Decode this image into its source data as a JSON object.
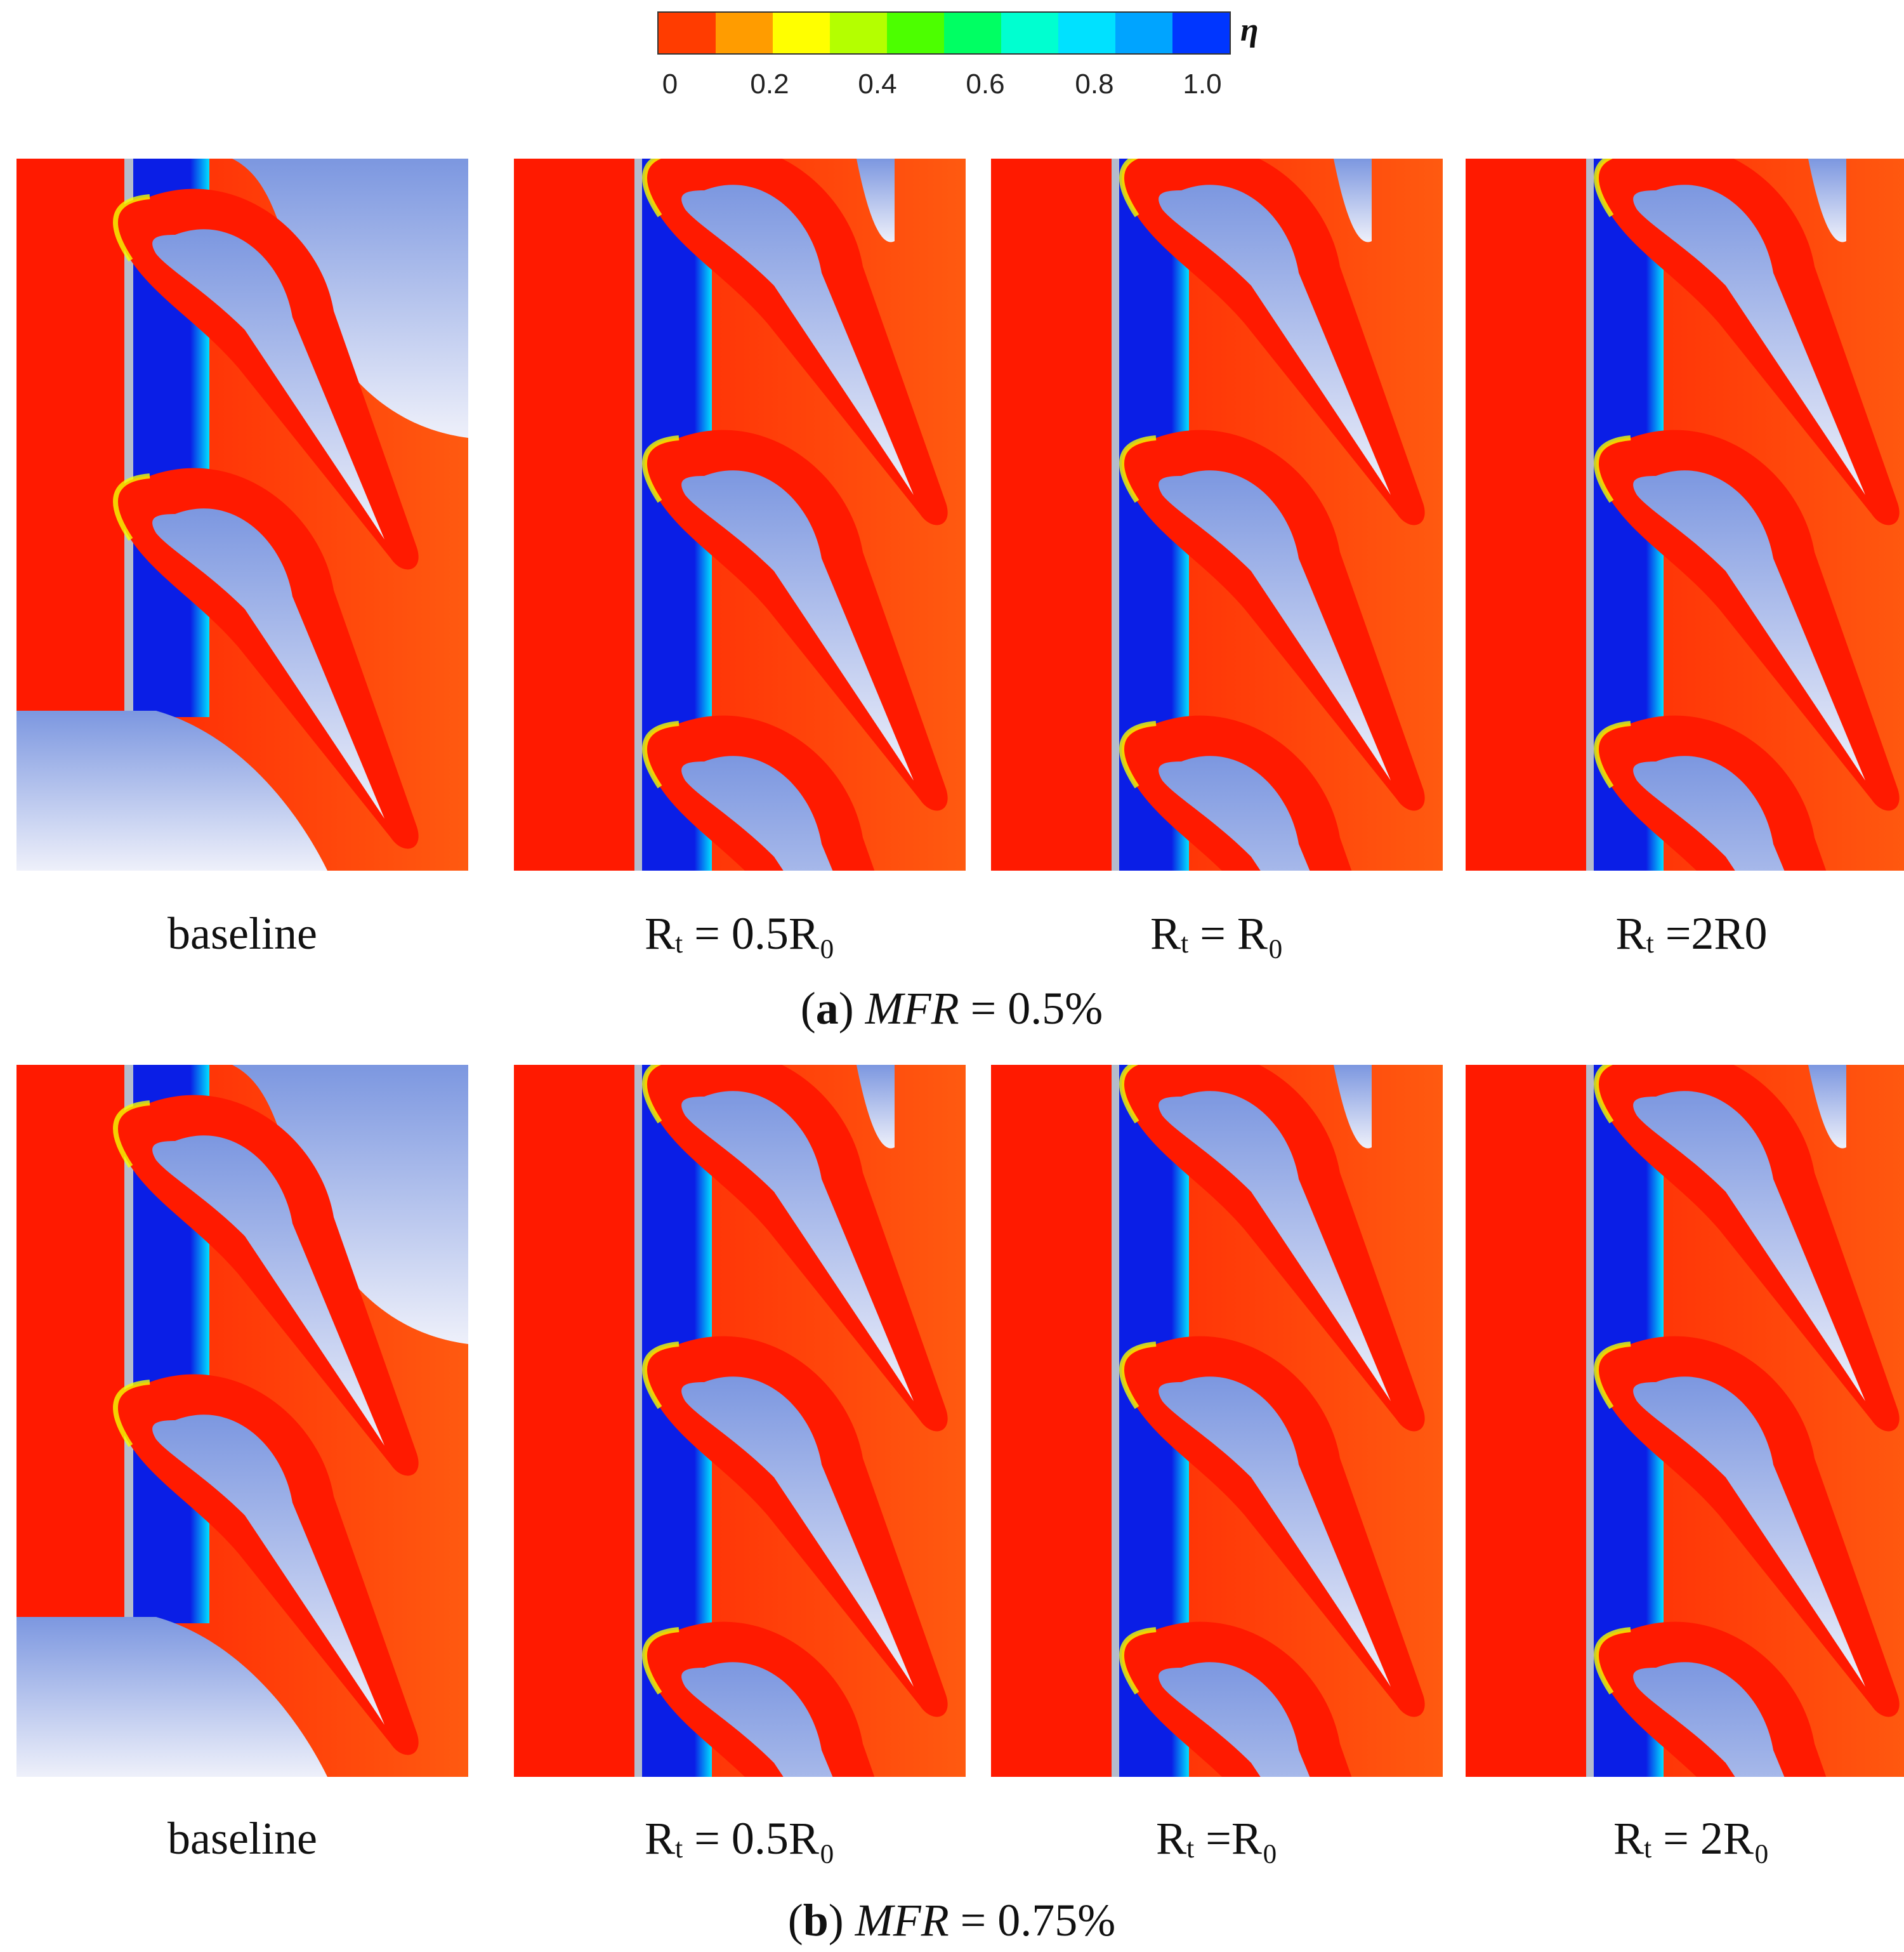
{
  "colorbar": {
    "symbol": "η",
    "ticks": [
      "0",
      "0.2",
      "0.4",
      "0.6",
      "0.8",
      "1.0"
    ],
    "colors": [
      "#ff3c00",
      "#ff9c00",
      "#ffff00",
      "#b4ff00",
      "#4cff00",
      "#00ff63",
      "#00ffd0",
      "#00e1ff",
      "#00a4ff",
      "#0036ff"
    ]
  },
  "rows": [
    {
      "caption": {
        "letter": "a",
        "var": "MFR",
        "rest": " = 0.5%"
      },
      "panels": [
        {
          "label_main": "baseline",
          "label_sub": "",
          "label_tail": "",
          "kind": "baseline"
        },
        {
          "label_main": "R",
          "label_sub": "t",
          "label_tail": " = 0.5R₀",
          "kind": "tapered"
        },
        {
          "label_main": "R",
          "label_sub": "t",
          "label_tail": " = R₀",
          "kind": "tapered"
        },
        {
          "label_main": "R",
          "label_sub": "t",
          "label_tail": " =2R0",
          "kind": "tapered"
        }
      ]
    },
    {
      "caption": {
        "letter": "b",
        "var": "MFR",
        "rest": " = 0.75%"
      },
      "panels": [
        {
          "label_main": "baseline",
          "label_sub": "",
          "label_tail": "",
          "kind": "baseline"
        },
        {
          "label_main": "R",
          "label_sub": "t",
          "label_tail": " = 0.5R₀",
          "kind": "tapered"
        },
        {
          "label_main": "R",
          "label_sub": "t",
          "label_tail": " =R₀",
          "kind": "tapered"
        },
        {
          "label_main": "R",
          "label_sub": "t",
          "label_tail": " = 2R₀",
          "kind": "tapered"
        }
      ]
    }
  ],
  "field_colors": {
    "hot": "#ff1a00",
    "warm": "#ff5a10",
    "coolant": "#0a1ee6",
    "solid_top": "#7c97e0",
    "solid_bottom": "#eef0fa",
    "wall": "#b4bccc"
  }
}
